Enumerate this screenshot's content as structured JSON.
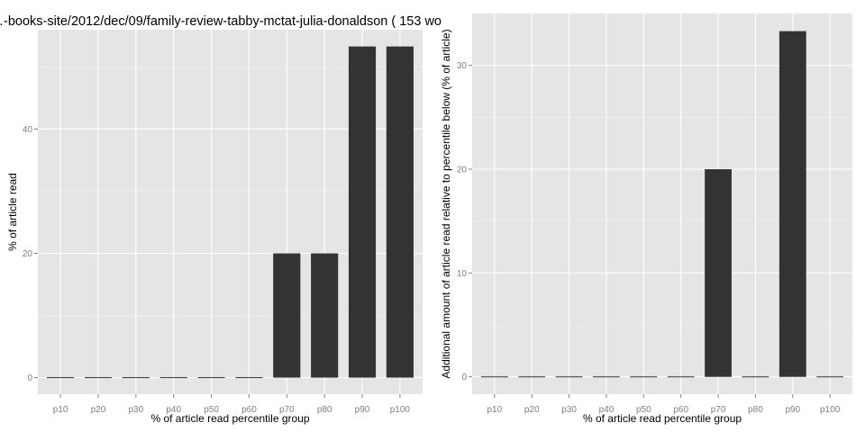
{
  "title": "…-books-site/2012/dec/09/family-review-tabby-mctat-julia-donaldson ( 153 wo",
  "colors": {
    "panel_bg": "#e5e5e5",
    "grid_major": "#ffffff",
    "grid_minor": "#f2f2f2",
    "bar": "#333333",
    "tick_text": "#7f7f7f"
  },
  "chart_data": [
    {
      "type": "bar",
      "categories": [
        "p10",
        "p20",
        "p30",
        "p40",
        "p50",
        "p60",
        "p70",
        "p80",
        "p90",
        "p100"
      ],
      "values": [
        0,
        0,
        0,
        0,
        0,
        0,
        20,
        20,
        53.3,
        53.3
      ],
      "xlabel": "% of article read percentile group",
      "ylabel": "% of article read",
      "ylim": [
        -2.67,
        56
      ],
      "yticks": [
        0,
        20,
        40
      ],
      "grid": true
    },
    {
      "type": "bar",
      "categories": [
        "p10",
        "p20",
        "p30",
        "p40",
        "p50",
        "p60",
        "p70",
        "p80",
        "p90",
        "p100"
      ],
      "values": [
        0,
        0,
        0,
        0,
        0,
        0,
        20,
        0,
        33.3,
        0
      ],
      "xlabel": "% of article read percentile group",
      "ylabel": "Additional amount of article read relative to percentile below (% of article)",
      "ylim": [
        -1.67,
        35
      ],
      "yticks": [
        0,
        10,
        20,
        30
      ],
      "grid": true
    }
  ]
}
